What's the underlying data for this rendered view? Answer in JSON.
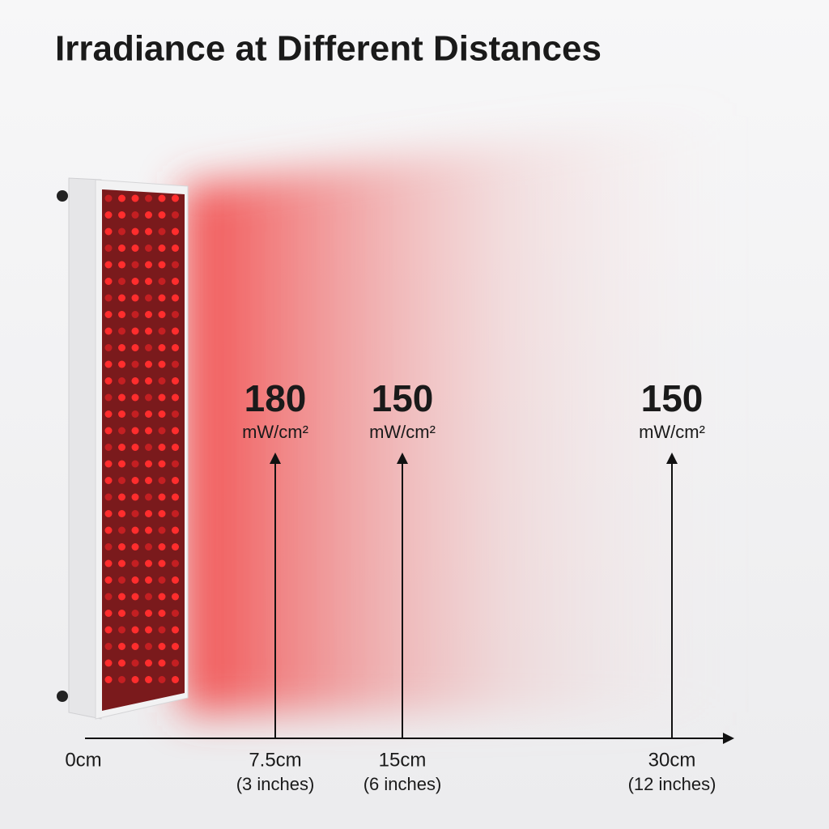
{
  "header": {
    "title": "Irradiance at Different Distances"
  },
  "axis": {
    "origin_label": "0cm"
  },
  "measurements": [
    {
      "value": 180,
      "unit": "mW/cm²",
      "distance": "7.5cm",
      "inches": "(3 inches)"
    },
    {
      "value": 150,
      "unit": "mW/cm²",
      "distance": "15cm",
      "inches": "(6 inches)"
    },
    {
      "value": 150,
      "unit": "mW/cm²",
      "distance": "30cm",
      "inches": "(12 inches)"
    }
  ]
}
